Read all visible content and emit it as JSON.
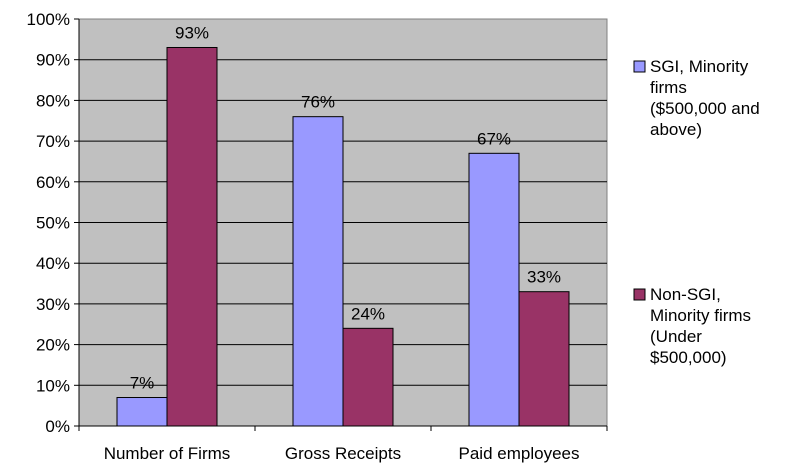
{
  "chart_data": {
    "type": "bar",
    "categories": [
      "Number of Firms",
      "Gross Receipts",
      "Paid employees"
    ],
    "series": [
      {
        "name_lines": [
          "SGI, Minority",
          "firms",
          "($500,000 and",
          "above)"
        ],
        "values": [
          7,
          76,
          67
        ],
        "labels": [
          "7%",
          "76%",
          "67%"
        ],
        "color": "#9999ff"
      },
      {
        "name_lines": [
          "Non-SGI,",
          "Minority firms",
          "(Under",
          "$500,000)"
        ],
        "values": [
          93,
          24,
          33
        ],
        "labels": [
          "93%",
          "24%",
          "33%"
        ],
        "color": "#993366"
      }
    ],
    "yticks": [
      "0%",
      "10%",
      "20%",
      "30%",
      "40%",
      "50%",
      "60%",
      "70%",
      "80%",
      "90%",
      "100%"
    ],
    "ylim": [
      0,
      100
    ],
    "grid": true,
    "plot_background": "#c0c0c0",
    "legend_position": "right"
  }
}
